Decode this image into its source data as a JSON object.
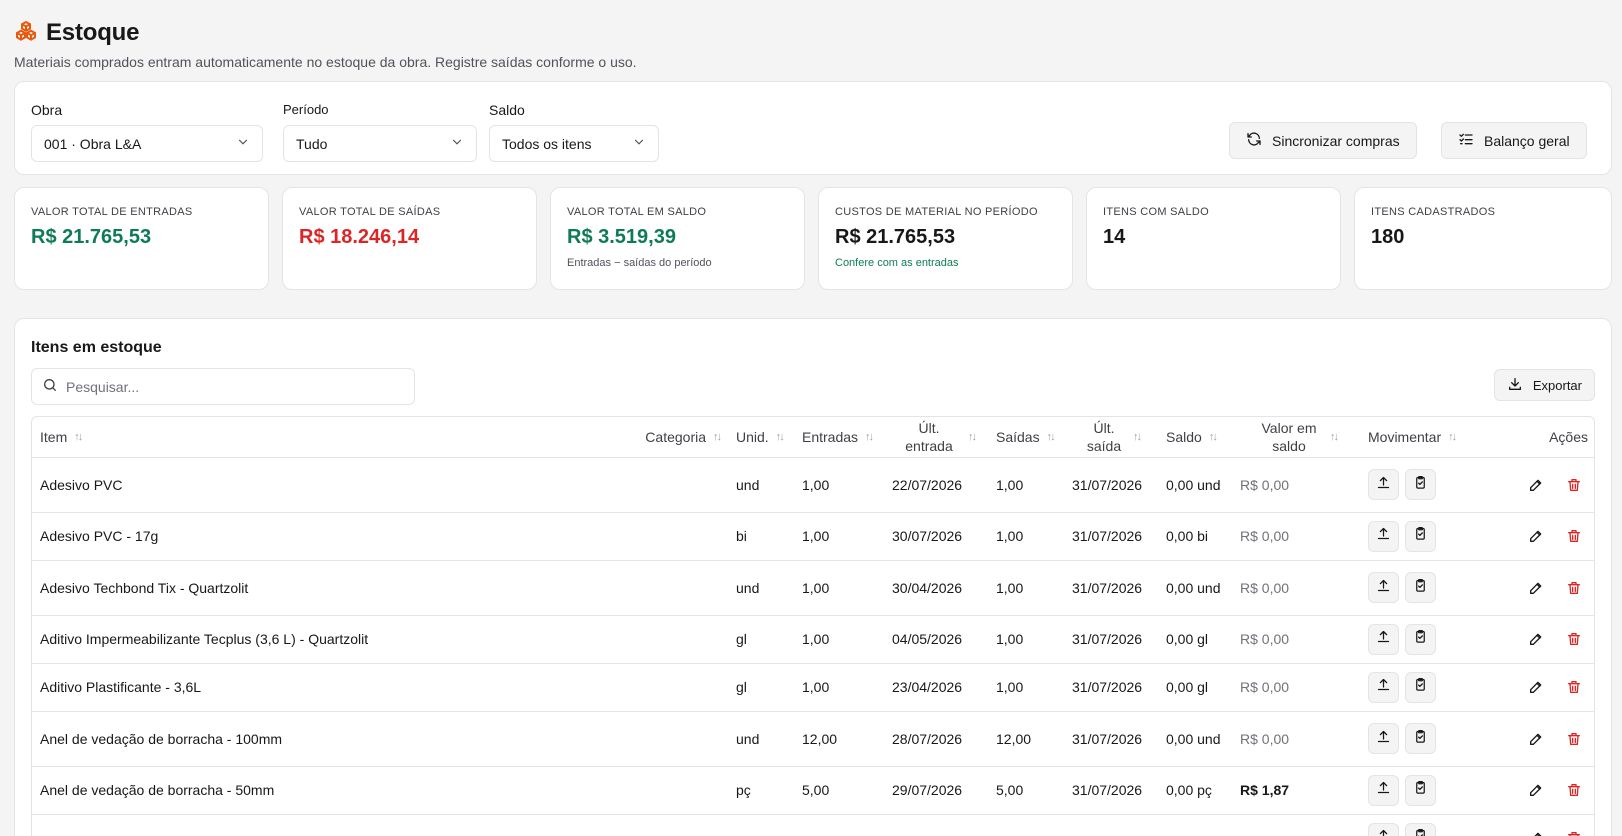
{
  "header": {
    "title": "Estoque",
    "subtitle": "Materiais comprados entram automaticamente no estoque da obra. Registre saídas conforme o uso."
  },
  "filters": {
    "obra": {
      "label": "Obra",
      "value": "001 · Obra L&A"
    },
    "periodo": {
      "label": "Período",
      "value": "Tudo"
    },
    "saldo": {
      "label": "Saldo",
      "value": "Todos os itens"
    },
    "sync_label": "Sincronizar compras",
    "balance_label": "Balanço geral"
  },
  "kpis": [
    {
      "label": "VALOR TOTAL DE ENTRADAS",
      "value": "R$ 21.765,53",
      "note": "",
      "color": "#0f7b55"
    },
    {
      "label": "VALOR TOTAL DE SAÍDAS",
      "value": "R$ 18.246,14",
      "note": "",
      "color": "#dc2626"
    },
    {
      "label": "VALOR TOTAL EM SALDO",
      "value": "R$ 3.519,39",
      "note": "Entradas − saídas do período",
      "color": "#0f7b55"
    },
    {
      "label": "CUSTOS DE MATERIAL NO PERÍODO",
      "value": "R$ 21.765,53",
      "note": "Confere com as entradas",
      "color": "#18181b"
    },
    {
      "label": "ITENS COM SALDO",
      "value": "14",
      "note": "",
      "color": "#18181b"
    },
    {
      "label": "ITENS CADASTRADOS",
      "value": "180",
      "note": "",
      "color": "#18181b"
    }
  ],
  "table": {
    "title": "Itens em estoque",
    "search_placeholder": "Pesquisar...",
    "export_label": "Exportar",
    "columns": {
      "item": "Item",
      "categoria": "Categoria",
      "unid": "Unid.",
      "entradas": "Entradas",
      "ult_entrada": "Últ. entrada",
      "saidas": "Saídas",
      "ult_saida": "Últ. saída",
      "saldo": "Saldo",
      "valor_saldo": "Valor em saldo",
      "movimentar": "Movimentar",
      "acoes": "Ações"
    },
    "rows": [
      {
        "item": "Adesivo PVC",
        "categoria": "",
        "unid": "und",
        "entradas": "1,00",
        "ult_entrada": "22/07/2026",
        "saidas": "1,00",
        "ult_saida": "31/07/2026",
        "saldo": "0,00 und",
        "valor": "R$ 0,00",
        "tall": true
      },
      {
        "item": "Adesivo PVC - 17g",
        "categoria": "",
        "unid": "bi",
        "entradas": "1,00",
        "ult_entrada": "30/07/2026",
        "saidas": "1,00",
        "ult_saida": "31/07/2026",
        "saldo": "0,00 bi",
        "valor": "R$ 0,00",
        "tall": false
      },
      {
        "item": "Adesivo Techbond Tix - Quartzolit",
        "categoria": "",
        "unid": "und",
        "entradas": "1,00",
        "ult_entrada": "30/04/2026",
        "saidas": "1,00",
        "ult_saida": "31/07/2026",
        "saldo": "0,00 und",
        "valor": "R$ 0,00",
        "tall": true
      },
      {
        "item": "Aditivo Impermeabilizante Tecplus (3,6 L) - Quartzolit",
        "categoria": "",
        "unid": "gl",
        "entradas": "1,00",
        "ult_entrada": "04/05/2026",
        "saidas": "1,00",
        "ult_saida": "31/07/2026",
        "saldo": "0,00 gl",
        "valor": "R$ 0,00",
        "tall": false
      },
      {
        "item": "Aditivo Plastificante - 3,6L",
        "categoria": "",
        "unid": "gl",
        "entradas": "1,00",
        "ult_entrada": "23/04/2026",
        "saidas": "1,00",
        "ult_saida": "31/07/2026",
        "saldo": "0,00 gl",
        "valor": "R$ 0,00",
        "tall": false
      },
      {
        "item": "Anel de vedação de borracha - 100mm",
        "categoria": "",
        "unid": "und",
        "entradas": "12,00",
        "ult_entrada": "28/07/2026",
        "saidas": "12,00",
        "ult_saida": "31/07/2026",
        "saldo": "0,00 und",
        "valor": "R$ 0,00",
        "tall": true
      },
      {
        "item": "Anel de vedação de borracha - 50mm",
        "categoria": "",
        "unid": "pç",
        "entradas": "5,00",
        "ult_entrada": "29/07/2026",
        "saidas": "5,00",
        "ult_saida": "31/07/2026",
        "saldo": "0,00 pç",
        "valor": "R$ 1,87",
        "tall": false,
        "valor_bold": true
      },
      {
        "item": "",
        "categoria": "",
        "unid": "",
        "entradas": "",
        "ult_entrada": "",
        "saidas": "",
        "ult_saida": "",
        "saldo": "",
        "valor": "",
        "tall": false
      }
    ]
  },
  "colors": {
    "accent": "#ea580c",
    "positive": "#0f7b55",
    "negative": "#dc2626"
  },
  "icons": {
    "brand": "boxes-icon",
    "sync": "refresh-icon",
    "balance": "list-checks-icon",
    "search": "search-icon",
    "export": "download-icon",
    "exit": "upload-icon",
    "clipboard": "clipboard-check-icon",
    "edit": "pencil-icon",
    "delete": "trash-icon"
  }
}
